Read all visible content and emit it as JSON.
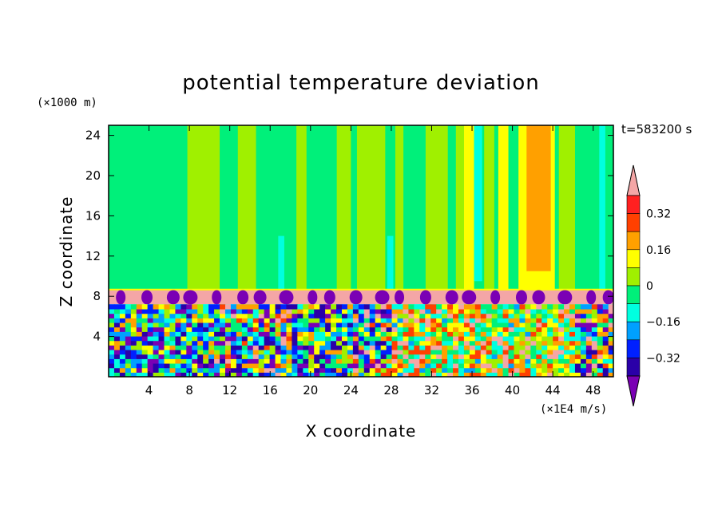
{
  "chart_data": {
    "type": "heatmap",
    "title": "potential temperature deviation",
    "xlabel": "X coordinate",
    "ylabel": "Z coordinate",
    "x_unit": "(×1E4 m/s)",
    "y_unit": "(×1000 m)",
    "time_label": "t=583200 s",
    "xlim": [
      0,
      50
    ],
    "ylim": [
      0,
      25
    ],
    "x_ticks": [
      4,
      8,
      12,
      16,
      20,
      24,
      28,
      32,
      36,
      40,
      44,
      48
    ],
    "y_ticks": [
      4,
      8,
      12,
      16,
      20,
      24
    ],
    "colorbar": {
      "levels": [
        -0.4,
        -0.32,
        -0.24,
        -0.16,
        -0.08,
        0,
        0.08,
        0.16,
        0.24,
        0.32,
        0.4
      ],
      "labels": [
        "0.32",
        "0.16",
        "0",
        "−0.16",
        "−0.32"
      ],
      "label_values": [
        0.32,
        0.16,
        0,
        -0.16,
        -0.32
      ],
      "colors": [
        "#7a00b4",
        "#2a00a8",
        "#0020ff",
        "#00a0ff",
        "#00ffe0",
        "#00f07a",
        "#a0f000",
        "#ffff00",
        "#ffa000",
        "#ff4000",
        "#ff2020",
        "#f4a6a6"
      ]
    }
  }
}
